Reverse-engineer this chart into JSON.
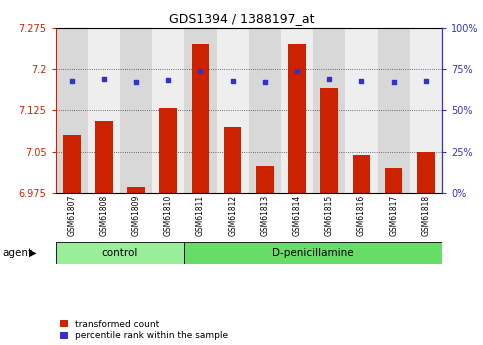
{
  "title": "GDS1394 / 1388197_at",
  "samples": [
    "GSM61807",
    "GSM61808",
    "GSM61809",
    "GSM61810",
    "GSM61811",
    "GSM61812",
    "GSM61813",
    "GSM61814",
    "GSM61815",
    "GSM61816",
    "GSM61817",
    "GSM61818"
  ],
  "transformed_counts": [
    7.08,
    7.105,
    6.987,
    7.13,
    7.245,
    7.095,
    7.025,
    7.245,
    7.165,
    7.045,
    7.02,
    7.05
  ],
  "percentile_ranks": [
    68,
    69,
    67,
    68.5,
    74,
    67.5,
    67,
    74,
    69,
    67.5,
    67,
    67.5
  ],
  "bar_color": "#cc2200",
  "dot_color": "#3333cc",
  "ylim_left": [
    6.975,
    7.275
  ],
  "ylim_right": [
    0,
    100
  ],
  "yticks_left": [
    6.975,
    7.05,
    7.125,
    7.2,
    7.275
  ],
  "ytick_labels_left": [
    "6.975",
    "7.05",
    "7.125",
    "7.2",
    "7.275"
  ],
  "yticks_right": [
    0,
    25,
    50,
    75,
    100
  ],
  "ytick_labels_right": [
    "0%",
    "25%",
    "50%",
    "75%",
    "100%"
  ],
  "groups": [
    {
      "label": "control",
      "n": 4,
      "color": "#99ee99"
    },
    {
      "label": "D-penicillamine",
      "n": 8,
      "color": "#66dd66"
    }
  ],
  "agent_label": "agent",
  "bar_width": 0.55,
  "bg_color": "#d8d8d8",
  "grid_color": "#444444",
  "base_value": 6.975,
  "left_color": "#cc2200",
  "right_color": "#3333cc"
}
